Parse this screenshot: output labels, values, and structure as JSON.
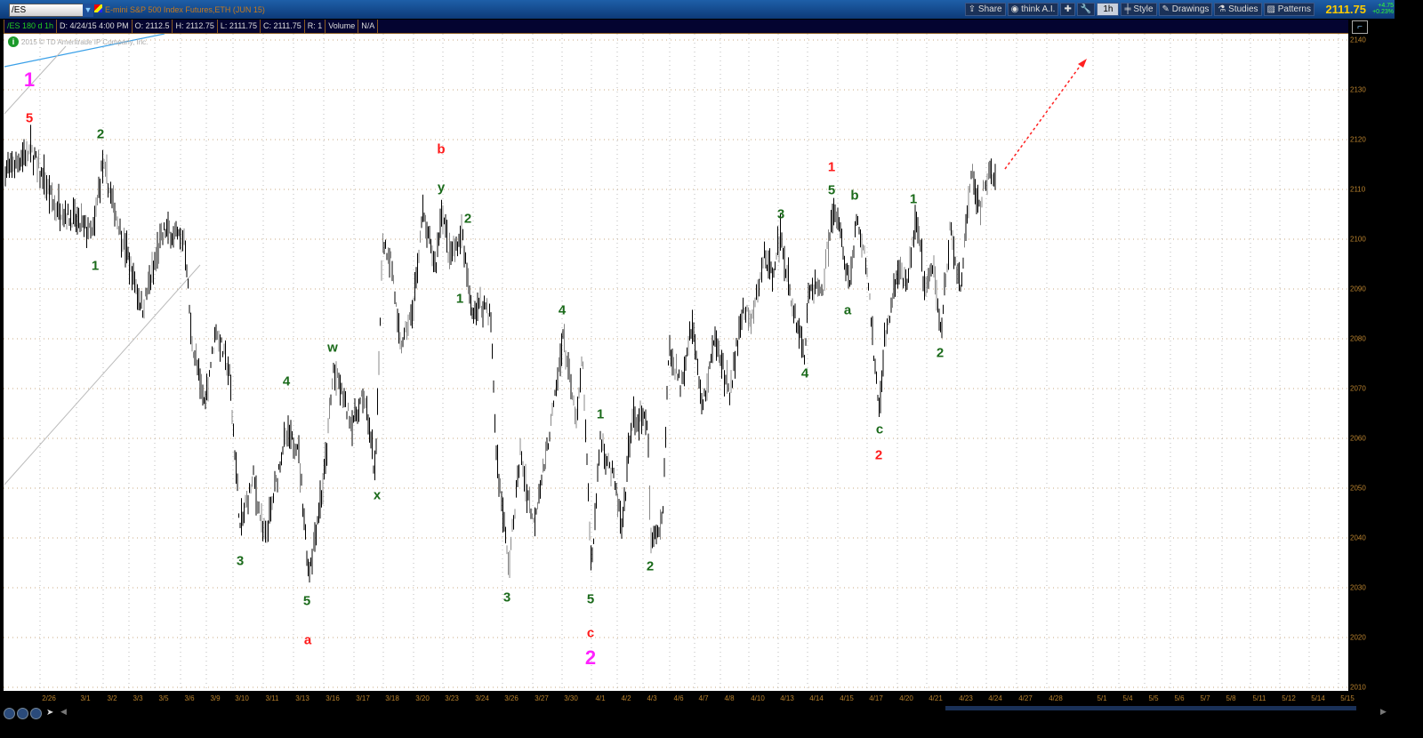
{
  "header": {
    "symbol": "/ES",
    "description": "E-mini S&P 500 Index Futures,ETH (JUN 15)",
    "last_price": "2111.75",
    "change": "+4.75",
    "change_pct": "+0.23%",
    "buttons": [
      {
        "label": "Share",
        "icon": "share-icon"
      },
      {
        "label": "think A.I.",
        "icon": "think-ai-icon"
      },
      {
        "label": "",
        "icon": "crosshair-icon"
      },
      {
        "label": "",
        "icon": "wrench-icon"
      },
      {
        "label": "1h",
        "icon": ""
      },
      {
        "label": "Style",
        "icon": "candle-icon"
      },
      {
        "label": "Drawings",
        "icon": "pencil-icon"
      },
      {
        "label": "Studies",
        "icon": "flask-icon"
      },
      {
        "label": "Patterns",
        "icon": "pattern-icon"
      }
    ]
  },
  "infobar": {
    "cells": [
      "/ES 180 d 1h",
      "D: 4/24/15 4:00 PM",
      "O: 2112.5",
      "H: 2112.75",
      "L: 2111.75",
      "C: 2111.75",
      "R: 1",
      "Volume",
      "N/A"
    ]
  },
  "copyright": "2015 © TD Ameritrade IP Company, Inc.",
  "colors": {
    "bars": "#000000",
    "green_label": "#1a6a1a",
    "red_label": "#ff1a1a",
    "magenta_label": "#ff22ff",
    "trendline": "#3aa0e8",
    "arrow": "#ff2020"
  },
  "chart_data": {
    "type": "bar",
    "interval": "1h",
    "ylim": [
      2010,
      2140
    ],
    "grid": true,
    "y_ticks": [
      "2140",
      "2130",
      "2120",
      "2110",
      "2100",
      "2090",
      "2080",
      "2070",
      "2060",
      "2050",
      "2040",
      "2030",
      "2020",
      "2010"
    ],
    "x_ticks": [
      "2/26",
      "3/1",
      "3/2",
      "3/3",
      "3/5",
      "3/6",
      "3/9",
      "3/10",
      "3/11",
      "3/13",
      "3/16",
      "3/17",
      "3/18",
      "3/20",
      "3/23",
      "3/24",
      "3/26",
      "3/27",
      "3/30",
      "4/1",
      "4/2",
      "4/3",
      "4/6",
      "4/7",
      "4/8",
      "4/10",
      "4/13",
      "4/14",
      "4/15",
      "4/17",
      "4/20",
      "4/21",
      "4/23",
      "4/24",
      "4/27",
      "4/28",
      "5/1",
      "5/4",
      "5/5",
      "5/6",
      "5/7",
      "5/8",
      "5/11",
      "5/12",
      "5/14",
      "5/15"
    ],
    "swing_prices": [
      2114,
      2118,
      2107,
      2101,
      2115,
      2086,
      2102,
      2100,
      2080,
      2067,
      2082,
      2073,
      2042,
      2052,
      2039,
      2060,
      2059,
      2033,
      2053,
      2074,
      2063,
      2069,
      2052,
      2100,
      2096,
      2078,
      2086,
      2105,
      2094,
      2107,
      2096,
      2101,
      2085,
      2087,
      2084,
      2057,
      2034,
      2057,
      2043,
      2055,
      2069,
      2081,
      2063,
      2076,
      2034,
      2060,
      2052,
      2041,
      2064,
      2063,
      2039,
      2044,
      2078,
      2071,
      2083,
      2066,
      2081,
      2068,
      2086,
      2083,
      2097,
      2093,
      2101,
      2087,
      2077,
      2090,
      2090,
      2105,
      2102,
      2090,
      2104,
      2094,
      2065,
      2080,
      2094,
      2090,
      2105,
      2090,
      2094,
      2081,
      2102,
      2089,
      2114,
      2105,
      2114,
      2112
    ],
    "wave_labels": [
      {
        "text": "1",
        "color": "magenta"
      },
      {
        "text": "5",
        "color": "red"
      },
      {
        "text": "2",
        "color": "green"
      },
      {
        "text": "1",
        "color": "green"
      },
      {
        "text": "3",
        "color": "green"
      },
      {
        "text": "4",
        "color": "green"
      },
      {
        "text": "5",
        "color": "green"
      },
      {
        "text": "a",
        "color": "red"
      },
      {
        "text": "w",
        "color": "green"
      },
      {
        "text": "x",
        "color": "green"
      },
      {
        "text": "b",
        "color": "red"
      },
      {
        "text": "y",
        "color": "green"
      },
      {
        "text": "2",
        "color": "green"
      },
      {
        "text": "1",
        "color": "green"
      },
      {
        "text": "3",
        "color": "green"
      },
      {
        "text": "4",
        "color": "green"
      },
      {
        "text": "5",
        "color": "green"
      },
      {
        "text": "c",
        "color": "red"
      },
      {
        "text": "2",
        "color": "magenta"
      },
      {
        "text": "1",
        "color": "green"
      },
      {
        "text": "2",
        "color": "green"
      },
      {
        "text": "3",
        "color": "green"
      },
      {
        "text": "4",
        "color": "green"
      },
      {
        "text": "1",
        "color": "red"
      },
      {
        "text": "5",
        "color": "green"
      },
      {
        "text": "b",
        "color": "green"
      },
      {
        "text": "a",
        "color": "green"
      },
      {
        "text": "c",
        "color": "green"
      },
      {
        "text": "2",
        "color": "red"
      },
      {
        "text": "1",
        "color": "green"
      },
      {
        "text": "2",
        "color": "green"
      }
    ]
  }
}
